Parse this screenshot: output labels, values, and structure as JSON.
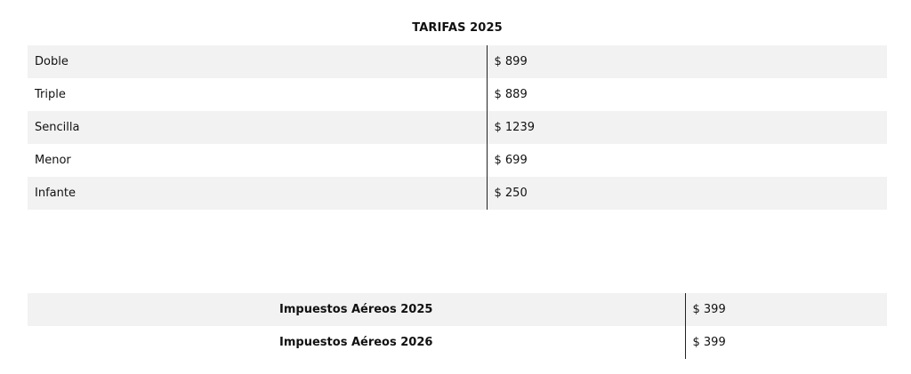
{
  "rates": {
    "title": "TARIFAS 2025",
    "rows": [
      {
        "name": "Doble",
        "price": "$ 899"
      },
      {
        "name": "Triple",
        "price": "$ 889"
      },
      {
        "name": "Sencilla",
        "price": "$ 1239"
      },
      {
        "name": "Menor",
        "price": "$ 699"
      },
      {
        "name": "Infante",
        "price": "$ 250"
      }
    ]
  },
  "taxes": {
    "rows": [
      {
        "name": "Impuestos Aéreos 2025",
        "price": "$ 399"
      },
      {
        "name": "Impuestos Aéreos 2026",
        "price": "$ 399"
      }
    ]
  },
  "colors": {
    "row_shade": "#f2f2f2",
    "divider": "#222222",
    "text": "#111111"
  }
}
